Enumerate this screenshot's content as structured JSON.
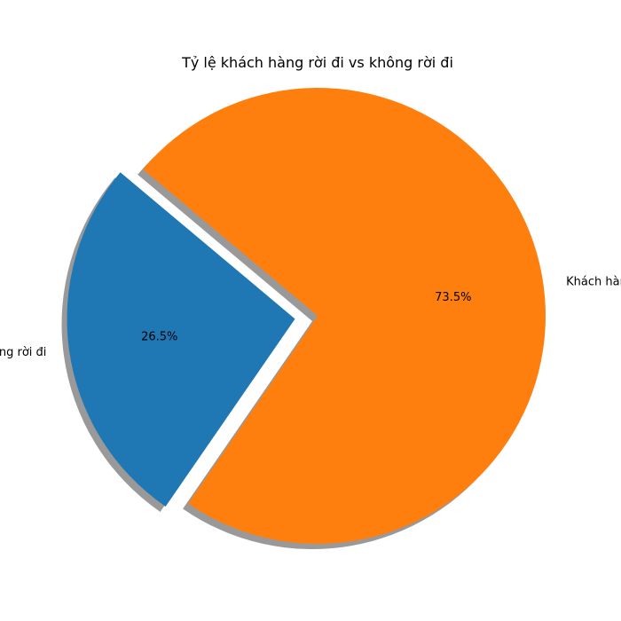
{
  "chart_data": {
    "type": "pie",
    "title": "Tỷ lệ khách hàng rời đi vs không rời đi",
    "slices": [
      {
        "label": "Khách hàng rời đi",
        "value": 26.5,
        "pct_label": "26.5%",
        "color": "#1f77b4",
        "exploded": true
      },
      {
        "label": "Khách hàng không rời đi",
        "value": 73.5,
        "pct_label": "73.5%",
        "color": "#ff7f0e",
        "exploded": false
      }
    ],
    "shadow": true,
    "start_angle_deg": 140,
    "direction": "counterclockwise"
  }
}
